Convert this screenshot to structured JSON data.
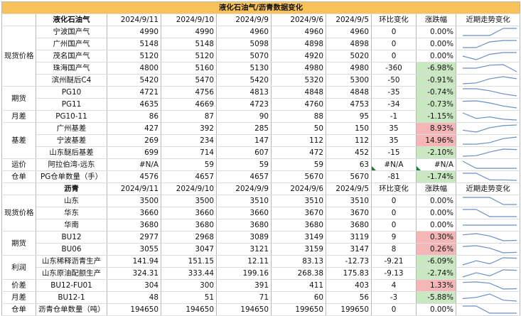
{
  "title": "液化石油气/沥青数据变化",
  "lpg": {
    "section": "液化石油气",
    "headers": [
      "2024/9/11",
      "2024/9/10",
      "2024/9/9",
      "2024/9/6",
      "2024/9/5",
      "环比变化",
      "涨跌幅",
      "近期走势变化"
    ],
    "groups": [
      {
        "label": "现货价格",
        "rows": [
          {
            "name": "宁波国产气",
            "vals": [
              "4990",
              "4990",
              "4960",
              "4960",
              "4960",
              "0",
              "0.00%"
            ],
            "tone": "neu",
            "spark": [
              4960,
              4960,
              4960,
              4990,
              4990
            ]
          },
          {
            "name": "广州国产气",
            "vals": [
              "5148",
              "5148",
              "5098",
              "4898",
              "4898",
              "0",
              "0.00%"
            ],
            "tone": "neu",
            "spark": [
              4898,
              4898,
              5098,
              5148,
              5148
            ]
          },
          {
            "name": "茂名国产气",
            "vals": [
              "5120",
              "5120",
              "5070",
              "4920",
              "5020",
              "0",
              "0.00%"
            ],
            "tone": "neu",
            "spark": [
              5020,
              4920,
              5070,
              5120,
              5120
            ]
          },
          {
            "name": "珠海国产气",
            "vals": [
              "4800",
              "5160",
              "5130",
              "4980",
              "4980",
              "-360",
              "-6.98%"
            ],
            "tone": "neg",
            "spark": [
              4980,
              4980,
              5130,
              5160,
              4800
            ]
          },
          {
            "name": "滨州醚后C4",
            "vals": [
              "5420",
              "5470",
              "5420",
              "5320",
              "5300",
              "-50",
              "-0.91%"
            ],
            "tone": "neg",
            "spark": [
              5300,
              5320,
              5420,
              5470,
              5420
            ]
          }
        ]
      },
      {
        "label": "期货",
        "rows": [
          {
            "name": "PG10",
            "vals": [
              "4721",
              "4756",
              "4813",
              "4848",
              "4848",
              "-35",
              "-0.74%"
            ],
            "tone": "neg",
            "spark": [
              4848,
              4848,
              4813,
              4756,
              4721
            ]
          },
          {
            "name": "PG11",
            "vals": [
              "4635",
              "4669",
              "4723",
              "4760",
              "4753",
              "-34",
              "-0.73%"
            ],
            "tone": "neg",
            "spark": [
              4753,
              4760,
              4723,
              4669,
              4635
            ]
          }
        ]
      },
      {
        "label": "月差",
        "rows": [
          {
            "name": "PG10-11",
            "vals": [
              "86",
              "87",
              "90",
              "88",
              "95",
              "-1",
              "-1.15%"
            ],
            "tone": "neg",
            "spark": [
              95,
              88,
              90,
              87,
              86
            ]
          }
        ]
      },
      {
        "label": "基差",
        "rows": [
          {
            "name": "广州基差",
            "vals": [
              "427",
              "392",
              "285",
              "50",
              "150",
              "35",
              "8.93%"
            ],
            "tone": "pos",
            "spark": [
              150,
              50,
              285,
              392,
              427
            ]
          },
          {
            "name": "宁波基差",
            "vals": [
              "269",
              "234",
              "147",
              "112",
              "112",
              "35",
              "14.96%"
            ],
            "tone": "pos",
            "spark": [
              112,
              112,
              147,
              234,
              269
            ]
          },
          {
            "name": "山东醚后基差",
            "vals": [
              "699",
              "714",
              "607",
              "472",
              "452",
              "-15",
              "-2.10%"
            ],
            "tone": "neg",
            "spark": [
              452,
              472,
              607,
              714,
              699
            ]
          }
        ]
      },
      {
        "label": "运价",
        "rows": [
          {
            "name": "阿拉伯湾-远东",
            "vals": [
              "#N/A",
              "59",
              "59",
              "59",
              "63",
              "#N/A",
              "#N/A"
            ],
            "tone": "neu",
            "spark": [
              63,
              59,
              59,
              59,
              59
            ],
            "flag": true
          }
        ]
      },
      {
        "label": "仓单",
        "rows": [
          {
            "name": "PG仓单数量（手）",
            "vals": [
              "4576",
              "4657",
              "4657",
              "5670",
              "5670",
              "-81",
              "-1.74%"
            ],
            "tone": "neg",
            "spark": [
              5670,
              5670,
              4657,
              4657,
              4576
            ]
          }
        ]
      }
    ]
  },
  "asphalt": {
    "section": "沥青",
    "headers": [
      "2024/9/11",
      "2024/9/10",
      "2024/9/9",
      "2024/9/6",
      "2024/9/5",
      "环比变化",
      "涨跌幅",
      "近期走势变化"
    ],
    "groups": [
      {
        "label": "现货价格",
        "rows": [
          {
            "name": "山东",
            "vals": [
              "3500",
              "3500",
              "3510",
              "3510",
              "3510",
              "0",
              "0.00%"
            ],
            "tone": "neu",
            "spark": [
              3510,
              3510,
              3510,
              3500,
              3500
            ]
          },
          {
            "name": "华东",
            "vals": [
              "3660",
              "3660",
              "3660",
              "3670",
              "3670",
              "0",
              "0.00%"
            ],
            "tone": "neu",
            "spark": [
              3670,
              3670,
              3660,
              3660,
              3660
            ]
          },
          {
            "name": "华南",
            "vals": [
              "3680",
              "3680",
              "3680",
              "3680",
              "3680",
              "0",
              "0.00%"
            ],
            "tone": "neu",
            "spark": [
              3680,
              3680,
              3680,
              3680,
              3680
            ]
          }
        ]
      },
      {
        "label": "期货",
        "rows": [
          {
            "name": "BU12",
            "vals": [
              "2977",
              "2968",
              "3089",
              "3149",
              "3119",
              "9",
              "0.30%"
            ],
            "tone": "pos",
            "spark": [
              3119,
              3149,
              3089,
              2968,
              2977
            ]
          },
          {
            "name": "BU06",
            "vals": [
              "3055",
              "3047",
              "3121",
              "3159",
              "3147",
              "8",
              "0.26%"
            ],
            "tone": "pos",
            "spark": [
              3147,
              3159,
              3121,
              3047,
              3055
            ]
          }
        ]
      },
      {
        "label": "利润",
        "rows": [
          {
            "name": "山东稀释沥青生产",
            "vals": [
              "141.94",
              "151.15",
              "12.11",
              "83.13",
              "-12.73",
              "-9.21",
              "-6.09%"
            ],
            "tone": "neg",
            "spark": [
              -12.73,
              83.13,
              12.11,
              151.15,
              141.94
            ]
          },
          {
            "name": "山东原油配额生产",
            "vals": [
              "324.31",
              "333.44",
              "199.16",
              "268.38",
              "175.83",
              "-9.13",
              "-2.74%"
            ],
            "tone": "neg",
            "spark": [
              175.83,
              268.38,
              199.16,
              333.44,
              324.31
            ]
          }
        ]
      },
      {
        "label": "价差",
        "rows": [
          {
            "name": "BU12-FU01",
            "vals": [
              "304",
              "300",
              "391",
              "411",
              "403",
              "4",
              "1.33%"
            ],
            "tone": "pos",
            "spark": [
              403,
              411,
              391,
              300,
              304
            ]
          }
        ]
      },
      {
        "label": "月差",
        "rows": [
          {
            "name": "BU12-1",
            "vals": [
              "48",
              "51",
              "71",
              "60",
              "56",
              "-3",
              "-5.88%"
            ],
            "tone": "neg",
            "spark": [
              56,
              60,
              71,
              51,
              48
            ]
          }
        ]
      },
      {
        "label": "仓单",
        "rows": [
          {
            "name": "沥青仓单数量（吨）",
            "vals": [
              "194650",
              "194650",
              "194650",
              "199650",
              "199650",
              "0",
              "0.00%"
            ],
            "tone": "neu",
            "spark": [
              199650,
              199650,
              194650,
              194650,
              194650
            ]
          }
        ]
      }
    ]
  },
  "colors": {
    "title_bg": "#f7c25a",
    "pos_bg": "#f4b6b6",
    "neg_bg": "#c9e8c1",
    "spark_line": "#6a8fc8"
  }
}
